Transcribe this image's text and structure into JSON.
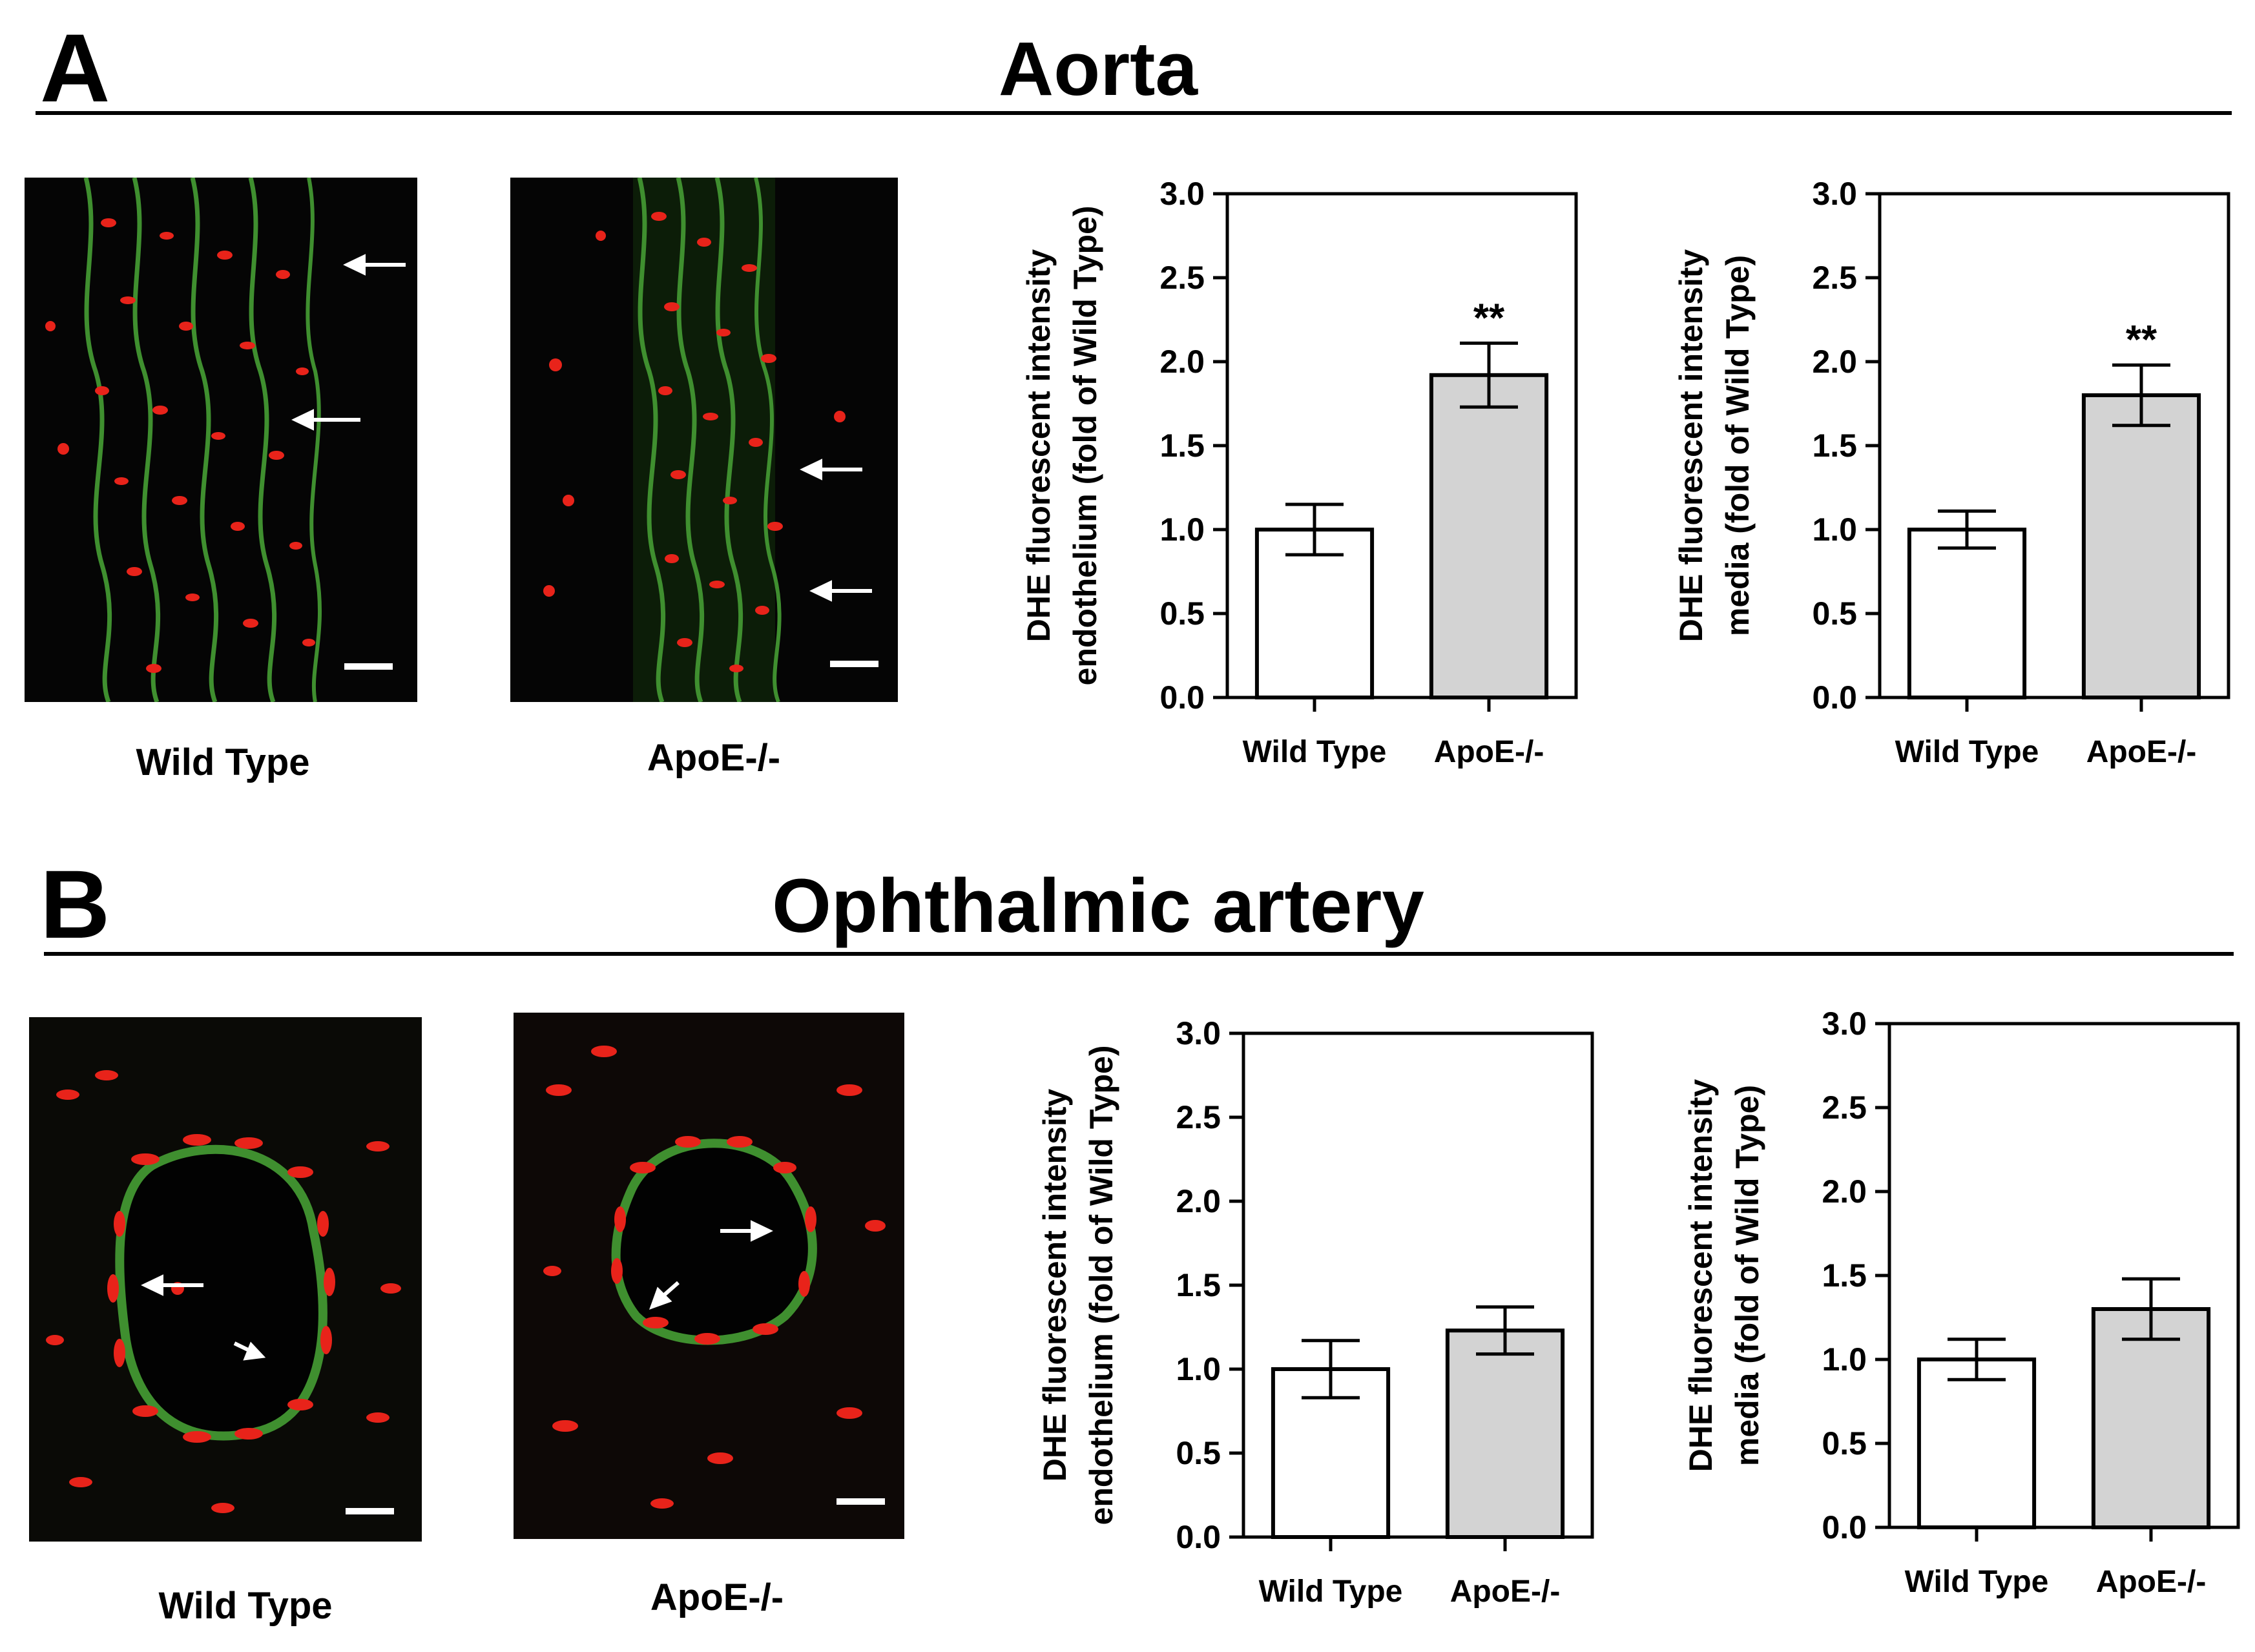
{
  "panels": [
    {
      "letter": "A",
      "title": "Aorta",
      "images": [
        {
          "label": "Wild Type"
        },
        {
          "label": "ApoE-/-"
        }
      ]
    },
    {
      "letter": "B",
      "title": "Ophthalmic artery",
      "images": [
        {
          "label": "Wild Type"
        },
        {
          "label": "ApoE-/-"
        }
      ]
    }
  ],
  "colors": {
    "bar_wild_type": "#ffffff",
    "bar_apoe": "#d3d3d3",
    "micro_red": "#ff2a1a",
    "micro_green": "#3f8f2f"
  },
  "chart_data": [
    {
      "type": "bar",
      "categories": [
        "Wild Type",
        "ApoE-/-"
      ],
      "values": [
        1.0,
        1.92
      ],
      "errors": [
        0.15,
        0.19
      ],
      "significance": [
        "",
        "**"
      ],
      "ylabel_lines": [
        "DHE fluorescent intensity",
        "endothelium  (fold of Wild Type)"
      ],
      "ylim": [
        0,
        3.0
      ],
      "yticks": [
        "0.0",
        "0.5",
        "1.0",
        "1.5",
        "2.0",
        "2.5",
        "3.0"
      ],
      "grid": false
    },
    {
      "type": "bar",
      "categories": [
        "Wild Type",
        "ApoE-/-"
      ],
      "values": [
        1.0,
        1.8
      ],
      "errors": [
        0.11,
        0.18
      ],
      "significance": [
        "",
        "**"
      ],
      "ylabel_lines": [
        "DHE fluorescent intensity",
        "media (fold of Wild Type)"
      ],
      "ylim": [
        0,
        3.0
      ],
      "yticks": [
        "0.0",
        "0.5",
        "1.0",
        "1.5",
        "2.0",
        "2.5",
        "3.0"
      ],
      "grid": false
    },
    {
      "type": "bar",
      "categories": [
        "Wild Type",
        "ApoE-/-"
      ],
      "values": [
        1.0,
        1.23
      ],
      "errors": [
        0.17,
        0.14
      ],
      "significance": [
        "",
        ""
      ],
      "ylabel_lines": [
        "DHE fluorescent intensity",
        "endothelium  (fold of Wild Type)"
      ],
      "ylim": [
        0,
        3.0
      ],
      "yticks": [
        "0.0",
        "0.5",
        "1.0",
        "1.5",
        "2.0",
        "2.5",
        "3.0"
      ],
      "grid": false
    },
    {
      "type": "bar",
      "categories": [
        "Wild Type",
        "ApoE-/-"
      ],
      "values": [
        1.0,
        1.3
      ],
      "errors": [
        0.12,
        0.18
      ],
      "significance": [
        "",
        ""
      ],
      "ylabel_lines": [
        "DHE fluorescent intensity",
        "media (fold of Wild Type)"
      ],
      "ylim": [
        0,
        3.0
      ],
      "yticks": [
        "0.0",
        "0.5",
        "1.0",
        "1.5",
        "2.0",
        "2.5",
        "3.0"
      ],
      "grid": false
    }
  ]
}
